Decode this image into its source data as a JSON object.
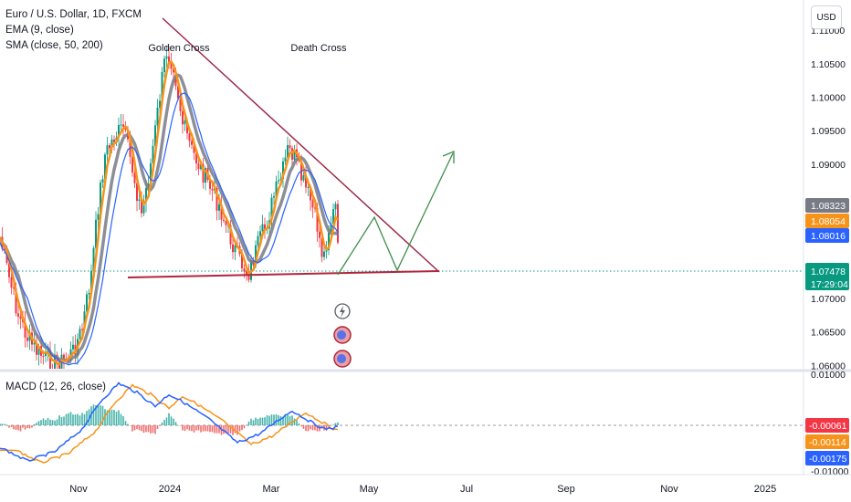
{
  "header": {
    "title": "Euro / U.S. Dollar, 1D, FXCM",
    "ema_label": "EMA (9, close)",
    "sma_label": "SMA (close, 50, 200)",
    "currency_button": "USD"
  },
  "annotations": {
    "golden_cross": "Golden Cross",
    "death_cross": "Death Cross"
  },
  "macd": {
    "label": "MACD (12, 26, close)"
  },
  "chart_data": {
    "type": "line",
    "price_axis": {
      "ticks": [
        "1.11000",
        "1.10500",
        "1.10000",
        "1.09500",
        "1.09000",
        "1.07000",
        "1.06500",
        "1.06000"
      ],
      "tick_values": [
        1.11,
        1.105,
        1.1,
        1.095,
        1.09,
        1.07,
        1.065,
        1.06
      ],
      "ylim": [
        1.0595,
        1.1145
      ]
    },
    "time_axis": {
      "ticks": [
        "Nov",
        "2024",
        "Mar",
        "May",
        "Jul",
        "Sep",
        "Nov",
        "2025"
      ]
    },
    "price_badges": [
      {
        "value": "1.08323",
        "color": "#787b86"
      },
      {
        "value": "1.08054",
        "color": "#f7931a"
      },
      {
        "value": "1.08016",
        "color": "#2962ff"
      },
      {
        "value": "1.07478",
        "sub": "17:29:04",
        "color": "#089981"
      }
    ],
    "macd_axis": {
      "ticks": [
        "0.01000",
        "-0.01000"
      ],
      "badges": [
        {
          "value": "-0.00061",
          "color": "#f23645"
        },
        {
          "value": "-0.00114",
          "color": "#f7931a"
        },
        {
          "value": "-0.00175",
          "color": "#2962ff"
        }
      ]
    },
    "current_price": 1.07478,
    "colors": {
      "up": "#089981",
      "down": "#f23645",
      "ema": "#f7931a",
      "sma50": "#787b86",
      "sma200": "#2962ff",
      "trendline": "#9c2a4b",
      "projection": "#3f8d4a"
    }
  }
}
